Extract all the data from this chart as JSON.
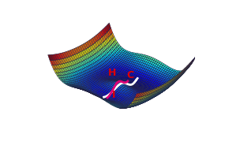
{
  "surface_colormap": "jet",
  "label_C": "C",
  "label_H": "H",
  "label_I": "I",
  "label_color": "#dd0000",
  "white_path_color": "white",
  "magenta_path_color": "#dd0077",
  "grid_color": "#222244",
  "figsize": [
    3.04,
    1.89
  ],
  "dpi": 100,
  "elev": 30,
  "azim": -50
}
